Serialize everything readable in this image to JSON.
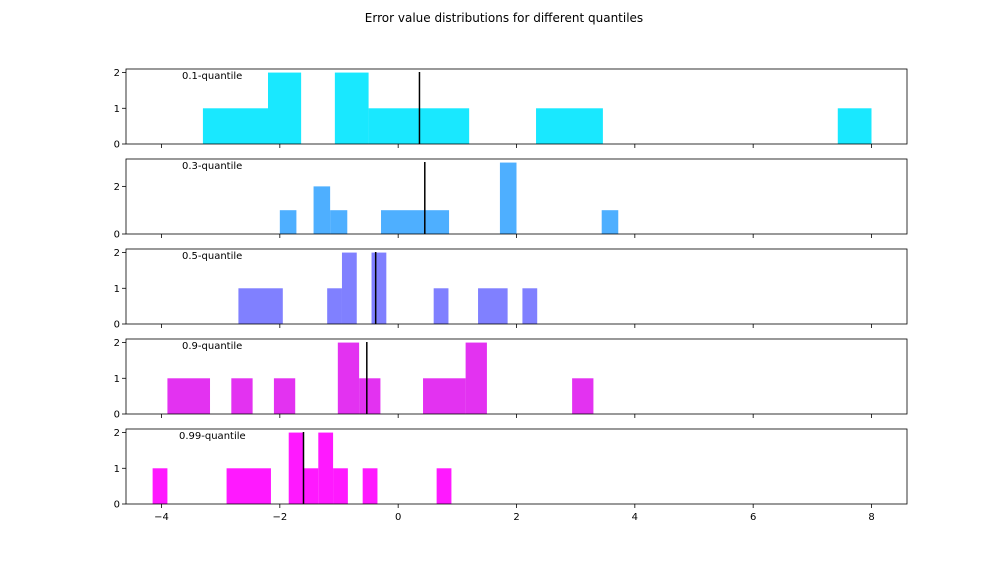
{
  "chart_data": {
    "type": "histogram",
    "title": "Error value distributions for different quantiles",
    "xlim": [
      -4.6,
      8.6
    ],
    "xticks": [
      -4,
      -2,
      0,
      2,
      4,
      6,
      8
    ],
    "xtick_labels": [
      "−4",
      "−2",
      "0",
      "2",
      "4",
      "6",
      "8"
    ],
    "grid": false,
    "panels": [
      {
        "label": "0.1-quantile",
        "color": "#00e5ff",
        "ylim": [
          0,
          2.1
        ],
        "yticks": [
          0,
          1,
          2
        ],
        "marker_x": 0.36,
        "bars": [
          {
            "x0": -3.3,
            "x1": -2.2,
            "value": 1
          },
          {
            "x0": -2.2,
            "x1": -1.64,
            "value": 2
          },
          {
            "x0": -1.07,
            "x1": -0.5,
            "value": 2
          },
          {
            "x0": -0.5,
            "x1": 1.2,
            "value": 1
          },
          {
            "x0": 2.33,
            "x1": 3.46,
            "value": 1
          },
          {
            "x0": 7.43,
            "x1": 8.0,
            "value": 1
          }
        ]
      },
      {
        "label": "0.3-quantile",
        "color": "#3ba6ff",
        "ylim": [
          0,
          3.15
        ],
        "yticks": [
          0,
          2
        ],
        "marker_x": 0.45,
        "bars": [
          {
            "x0": -2.0,
            "x1": -1.72,
            "value": 1
          },
          {
            "x0": -1.43,
            "x1": -1.15,
            "value": 2
          },
          {
            "x0": -1.15,
            "x1": -0.86,
            "value": 1
          },
          {
            "x0": -0.29,
            "x1": 0.86,
            "value": 1
          },
          {
            "x0": 1.72,
            "x1": 2.0,
            "value": 3
          },
          {
            "x0": 3.44,
            "x1": 3.72,
            "value": 1
          }
        ]
      },
      {
        "label": "0.5-quantile",
        "color": "#7272ff",
        "ylim": [
          0,
          2.1
        ],
        "yticks": [
          0,
          1,
          2
        ],
        "marker_x": -0.38,
        "bars": [
          {
            "x0": -2.7,
            "x1": -1.95,
            "value": 1
          },
          {
            "x0": -1.2,
            "x1": -0.95,
            "value": 1
          },
          {
            "x0": -0.95,
            "x1": -0.7,
            "value": 2
          },
          {
            "x0": -0.45,
            "x1": -0.2,
            "value": 2
          },
          {
            "x0": 0.6,
            "x1": 0.85,
            "value": 1
          },
          {
            "x0": 1.35,
            "x1": 1.85,
            "value": 1
          },
          {
            "x0": 2.1,
            "x1": 2.35,
            "value": 1
          }
        ]
      },
      {
        "label": "0.9-quantile",
        "color": "#e01cf0",
        "ylim": [
          0,
          2.1
        ],
        "yticks": [
          0,
          1,
          2
        ],
        "marker_x": -0.53,
        "bars": [
          {
            "x0": -3.9,
            "x1": -3.18,
            "value": 1
          },
          {
            "x0": -2.82,
            "x1": -2.46,
            "value": 1
          },
          {
            "x0": -2.1,
            "x1": -1.74,
            "value": 1
          },
          {
            "x0": -1.02,
            "x1": -0.66,
            "value": 2
          },
          {
            "x0": -0.66,
            "x1": -0.3,
            "value": 1
          },
          {
            "x0": 0.42,
            "x1": 1.14,
            "value": 1
          },
          {
            "x0": 1.14,
            "x1": 1.5,
            "value": 2
          },
          {
            "x0": 2.94,
            "x1": 3.3,
            "value": 1
          }
        ]
      },
      {
        "label": "0.99-quantile",
        "color": "#ff00ff",
        "ylim": [
          0,
          2.1
        ],
        "yticks": [
          0,
          1,
          2
        ],
        "marker_x": -1.6,
        "bars": [
          {
            "x0": -4.15,
            "x1": -3.9,
            "value": 1
          },
          {
            "x0": -2.9,
            "x1": -2.15,
            "value": 1
          },
          {
            "x0": -1.85,
            "x1": -1.6,
            "value": 2
          },
          {
            "x0": -1.6,
            "x1": -1.35,
            "value": 1
          },
          {
            "x0": -1.35,
            "x1": -1.1,
            "value": 2
          },
          {
            "x0": -1.1,
            "x1": -0.85,
            "value": 1
          },
          {
            "x0": -0.6,
            "x1": -0.35,
            "value": 1
          },
          {
            "x0": 0.65,
            "x1": 0.9,
            "value": 1
          }
        ]
      }
    ]
  }
}
